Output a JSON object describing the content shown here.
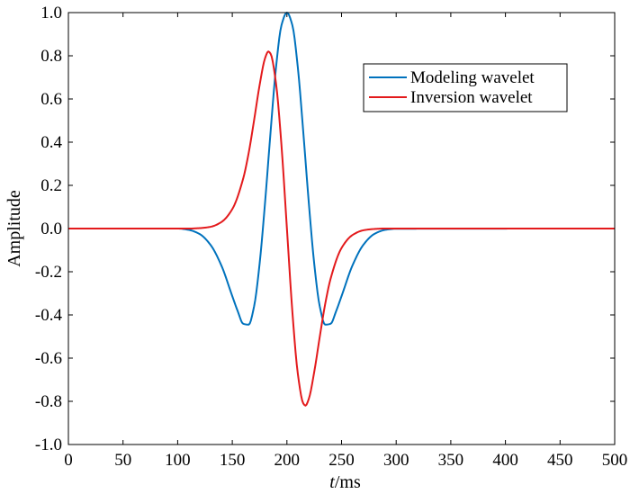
{
  "chart_data": {
    "type": "line",
    "title": "",
    "xlabel_italic": "t",
    "xlabel_rest": "/ms",
    "ylabel": "Amplitude",
    "xlim": [
      0,
      500
    ],
    "ylim": [
      -1.0,
      1.0
    ],
    "x_ticks": [
      0,
      50,
      100,
      150,
      200,
      250,
      300,
      350,
      400,
      450,
      500
    ],
    "x_tick_labels": [
      "0",
      "50",
      "100",
      "150",
      "200",
      "250",
      "300",
      "350",
      "400",
      "450",
      "500"
    ],
    "y_ticks": [
      1.0,
      0.8,
      0.6,
      0.4,
      0.2,
      0.0,
      -0.2,
      -0.4,
      -0.6,
      -0.8,
      -1.0
    ],
    "y_tick_labels": [
      "1.0",
      "0.8",
      "0.6",
      "0.4",
      "0.2",
      "0.0",
      "-0.2",
      "-0.4",
      "-0.6",
      "-0.8",
      "-1.0"
    ],
    "grid": false,
    "legend_position": "top-right",
    "series": [
      {
        "name": "Modeling wavelet",
        "color": "#0072BD",
        "x": [
          0,
          100,
          110,
          120,
          130,
          140,
          150,
          155,
          160,
          165,
          170,
          175,
          180,
          185,
          190,
          195,
          200,
          205,
          210,
          215,
          220,
          225,
          230,
          235,
          240,
          245,
          250,
          260,
          270,
          280,
          290,
          300,
          500
        ],
        "y": [
          0.0,
          0.0,
          -0.006,
          -0.025,
          -0.075,
          -0.171,
          -0.313,
          -0.383,
          -0.441,
          -0.445,
          -0.359,
          -0.163,
          0.121,
          0.445,
          0.745,
          0.941,
          1.0,
          0.941,
          0.745,
          0.445,
          0.121,
          -0.163,
          -0.359,
          -0.445,
          -0.441,
          -0.383,
          -0.313,
          -0.171,
          -0.075,
          -0.025,
          -0.006,
          -0.001,
          0.0
        ]
      },
      {
        "name": "Inversion wavelet",
        "color": "#E31A1C",
        "x": [
          0,
          110,
          120,
          130,
          140,
          150,
          160,
          165,
          170,
          175,
          180,
          183,
          185,
          190,
          195,
          200,
          205,
          210,
          215,
          217,
          220,
          225,
          230,
          235,
          240,
          250,
          260,
          270,
          280,
          290,
          500
        ],
        "y": [
          0.0,
          0.0,
          0.002,
          0.008,
          0.03,
          0.09,
          0.232,
          0.35,
          0.503,
          0.664,
          0.789,
          0.82,
          0.81,
          0.673,
          0.386,
          0.0,
          -0.386,
          -0.673,
          -0.81,
          -0.82,
          -0.789,
          -0.664,
          -0.503,
          -0.35,
          -0.232,
          -0.09,
          -0.03,
          -0.008,
          -0.002,
          0.0,
          0.0
        ]
      }
    ]
  }
}
